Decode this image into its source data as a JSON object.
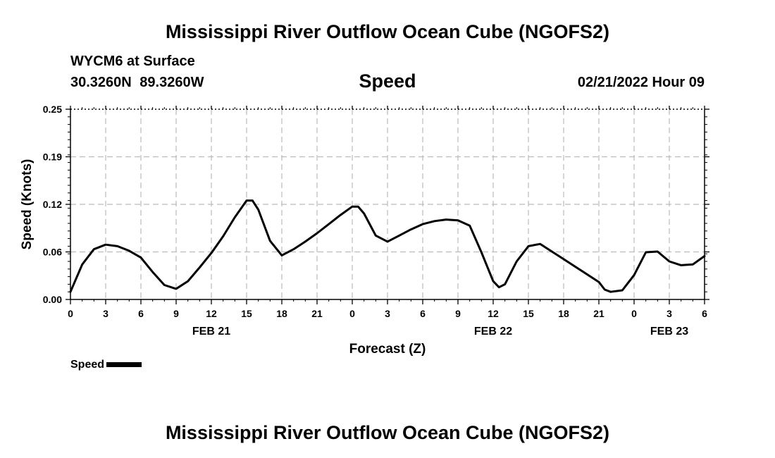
{
  "header": {
    "title": "Mississippi River Outflow Ocean Cube (NGOFS2)",
    "station": "WYCM6 at Surface",
    "coords": "30.3260N  89.3260W",
    "variable": "Speed",
    "date": "02/21/2022 Hour 09"
  },
  "footer": {
    "title": "Mississippi River Outflow Ocean Cube (NGOFS2)"
  },
  "legend": {
    "label": "Speed",
    "color": "#000000"
  },
  "chart_data": {
    "type": "line",
    "title": "Speed",
    "xlabel": "Forecast (Z)",
    "ylabel": "Speed (Knots)",
    "xlim": [
      0,
      54
    ],
    "ylim": [
      0,
      0.25
    ],
    "y_ticks": [
      "0.00",
      "0.06",
      "0.12",
      "0.19",
      "0.25"
    ],
    "x_tick_labels": [
      "0",
      "3",
      "6",
      "9",
      "12",
      "15",
      "18",
      "21",
      "0",
      "3",
      "6",
      "9",
      "12",
      "15",
      "18",
      "21",
      "0",
      "3",
      "6"
    ],
    "date_labels": [
      {
        "text": "FEB 21",
        "x": 12
      },
      {
        "text": "FEB 22",
        "x": 36
      },
      {
        "text": "FEB 23",
        "x": 51
      }
    ],
    "grid": true,
    "legend_position": "bottom-left",
    "series": [
      {
        "name": "Speed",
        "color": "#000000",
        "x": [
          0,
          1,
          2,
          3,
          4,
          5,
          6,
          7,
          8,
          9,
          10,
          11,
          12,
          13,
          14,
          15,
          15.5,
          16,
          17,
          18,
          19,
          20,
          21,
          22,
          23,
          24,
          24.5,
          25,
          26,
          27,
          28,
          29,
          30,
          31,
          32,
          33,
          34,
          35,
          36,
          36.5,
          37,
          38,
          39,
          40,
          41,
          42,
          43,
          44,
          45,
          45.5,
          46,
          47,
          48,
          49,
          50,
          51,
          52,
          53,
          54
        ],
        "y": [
          0.01,
          0.046,
          0.066,
          0.072,
          0.07,
          0.064,
          0.055,
          0.036,
          0.019,
          0.014,
          0.024,
          0.042,
          0.061,
          0.083,
          0.108,
          0.13,
          0.13,
          0.118,
          0.077,
          0.058,
          0.066,
          0.076,
          0.087,
          0.099,
          0.111,
          0.122,
          0.122,
          0.113,
          0.084,
          0.076,
          0.084,
          0.092,
          0.099,
          0.103,
          0.105,
          0.104,
          0.097,
          0.062,
          0.024,
          0.016,
          0.02,
          0.05,
          0.07,
          0.073,
          0.063,
          0.053,
          0.043,
          0.033,
          0.023,
          0.013,
          0.01,
          0.012,
          0.032,
          0.062,
          0.063,
          0.05,
          0.045,
          0.046,
          0.057
        ]
      }
    ]
  }
}
